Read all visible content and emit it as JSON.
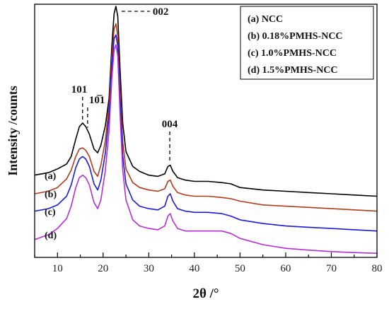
{
  "chart_data": {
    "type": "line",
    "xlabel": "2θ /°",
    "ylabel": "Intensity /counts",
    "xlim": [
      5,
      80
    ],
    "xticks": [
      "10",
      "20",
      "30",
      "40",
      "50",
      "60",
      "70",
      "80"
    ],
    "xtick_values": [
      10,
      20,
      30,
      40,
      50,
      60,
      70,
      80
    ],
    "y_arbitrary_units": true,
    "ylim": [
      0,
      100
    ],
    "grid": false,
    "legend_position": "top-right",
    "legend": [
      "(a) NCC",
      "(b) 0.18%PMHS-NCC",
      "(c) 1.0%PMHS-NCC",
      "(d) 1.5%PMHS-NCC"
    ],
    "peak_annotations": [
      {
        "label": "101",
        "x": 15.5
      },
      {
        "label": "10̅1",
        "x": 16.6
      },
      {
        "label": "002",
        "x": 22.8
      },
      {
        "label": "004",
        "x": 34.6
      }
    ],
    "series": [
      {
        "name": "(a)",
        "color": "#000000",
        "x": [
          5,
          8,
          10,
          12,
          13,
          14,
          14.8,
          15.5,
          16.2,
          17,
          18,
          18.8,
          19.5,
          20.5,
          21.3,
          21.9,
          22.4,
          22.8,
          23.2,
          23.7,
          24.3,
          25,
          26.5,
          28,
          30,
          32,
          33.5,
          34.2,
          34.7,
          35.3,
          36.3,
          38,
          40,
          43,
          46,
          48,
          50,
          55,
          60,
          65,
          70,
          75,
          80
        ],
        "y": [
          32.0,
          33.0,
          34.5,
          36.5,
          39.5,
          46.5,
          51.5,
          53.0,
          51.5,
          48.5,
          42.5,
          41.0,
          44.0,
          52.0,
          63.0,
          84.0,
          97.0,
          100.0,
          96.0,
          75.0,
          53.0,
          41.5,
          35.5,
          33.5,
          32.0,
          31.5,
          32.5,
          35.5,
          36.0,
          33.5,
          31.0,
          30.0,
          29.5,
          29.5,
          29.0,
          28.5,
          27.0,
          26.0,
          25.5,
          25.0,
          24.5,
          24.0,
          23.5
        ]
      },
      {
        "name": "(b)",
        "color": "#b03a1c",
        "x": [
          5,
          8,
          10,
          12,
          13,
          14,
          14.8,
          15.5,
          16.2,
          17,
          18,
          18.8,
          19.5,
          20.5,
          21.3,
          21.9,
          22.4,
          22.8,
          23.2,
          23.7,
          24.3,
          25,
          26.5,
          28,
          30,
          32,
          33.5,
          34.2,
          34.7,
          35.3,
          36.3,
          38,
          40,
          43,
          46,
          48,
          50,
          55,
          60,
          65,
          70,
          75,
          80
        ],
        "y": [
          24.5,
          25.5,
          27.0,
          30.5,
          34.0,
          39.5,
          42.5,
          43.0,
          42.0,
          39.5,
          33.5,
          31.5,
          36.0,
          46.0,
          60.0,
          80.0,
          91.0,
          93.0,
          88.0,
          66.0,
          45.5,
          34.5,
          29.0,
          27.0,
          26.0,
          25.5,
          26.5,
          29.5,
          30.0,
          27.5,
          25.0,
          24.0,
          23.5,
          23.5,
          23.0,
          22.5,
          21.5,
          20.0,
          19.5,
          19.0,
          18.5,
          18.0,
          17.5
        ]
      },
      {
        "name": "(c)",
        "color": "#1a1ad8",
        "x": [
          5,
          8,
          10,
          12,
          13,
          14,
          14.8,
          15.5,
          16.2,
          17,
          18,
          18.8,
          19.5,
          20.5,
          21.3,
          21.9,
          22.4,
          22.8,
          23.2,
          23.7,
          24.3,
          25,
          26.5,
          28,
          30,
          32,
          33.5,
          34.2,
          34.7,
          35.3,
          36.3,
          38,
          40,
          43,
          46,
          48,
          50,
          55,
          60,
          65,
          70,
          75,
          80
        ],
        "y": [
          17.5,
          18.5,
          20.0,
          23.5,
          28.0,
          35.0,
          38.5,
          39.5,
          38.5,
          35.5,
          28.5,
          26.0,
          30.0,
          41.0,
          56.0,
          76.0,
          87.0,
          88.5,
          84.0,
          62.0,
          40.0,
          28.5,
          22.0,
          19.5,
          18.5,
          18.0,
          19.5,
          23.5,
          24.5,
          21.5,
          18.5,
          17.5,
          17.0,
          17.0,
          16.5,
          15.5,
          14.0,
          12.5,
          11.5,
          11.0,
          10.5,
          10.0,
          9.5
        ]
      },
      {
        "name": "(d)",
        "color": "#b42ed8",
        "x": [
          5,
          8,
          10,
          12,
          13,
          14,
          14.8,
          15.5,
          16.2,
          17,
          18,
          18.8,
          19.5,
          20.5,
          21.3,
          21.9,
          22.4,
          22.8,
          23.2,
          23.7,
          24.3,
          25,
          26.5,
          28,
          30,
          32,
          33.5,
          34.2,
          34.7,
          35.3,
          36.3,
          38,
          40,
          43,
          46,
          48,
          50,
          55,
          60,
          65,
          70,
          75,
          80
        ],
        "y": [
          6.0,
          8.0,
          10.5,
          14.5,
          19.5,
          27.0,
          31.0,
          32.0,
          31.0,
          28.0,
          21.0,
          18.5,
          22.0,
          34.0,
          50.0,
          71.0,
          82.5,
          84.5,
          80.0,
          57.0,
          34.0,
          22.0,
          14.0,
          11.5,
          10.5,
          10.0,
          11.5,
          15.5,
          16.5,
          13.5,
          10.5,
          9.5,
          9.5,
          9.5,
          9.5,
          8.5,
          6.5,
          4.0,
          2.5,
          1.8,
          1.2,
          0.8,
          0.5
        ]
      }
    ]
  }
}
